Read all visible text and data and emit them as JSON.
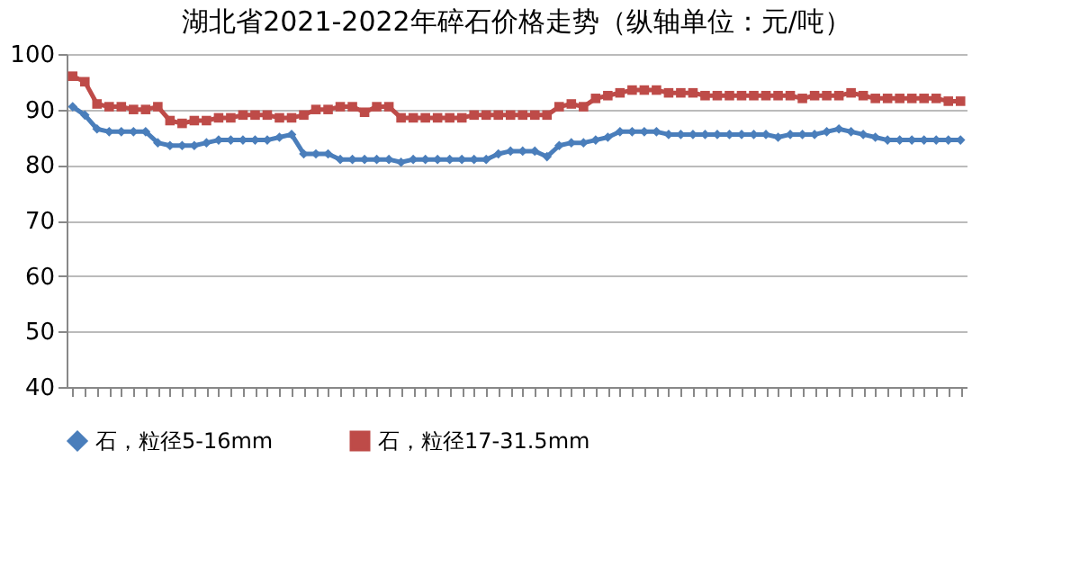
{
  "chart_data": {
    "type": "line",
    "title": "湖北省2021-2022年碎石价格走势（纵轴单位：元/吨）",
    "categories": [
      null,
      null,
      null,
      null,
      null,
      null,
      null,
      null,
      null,
      null,
      null,
      null,
      null,
      null,
      null,
      null,
      null,
      null,
      null,
      null,
      null,
      null,
      null,
      null,
      null,
      null,
      null,
      null,
      null,
      null,
      null,
      null,
      null,
      null,
      null,
      null,
      null,
      null,
      null,
      null,
      null,
      null,
      null,
      null,
      null,
      null,
      null,
      null,
      null,
      null,
      null,
      null,
      null,
      null,
      null,
      null,
      null,
      null,
      null,
      null,
      null,
      null,
      null,
      null,
      null,
      null,
      null,
      null,
      null,
      null,
      null,
      null,
      null,
      null
    ],
    "series": [
      {
        "name": "石，粒径5-16mm",
        "color": "#4a7ebb",
        "marker": "diamond",
        "values": [
          90.5,
          89,
          86.5,
          86,
          86,
          86,
          86,
          84,
          83.5,
          83.5,
          83.5,
          84,
          84.5,
          84.5,
          84.5,
          84.5,
          84.5,
          85,
          85.5,
          82,
          82,
          82,
          81,
          81,
          81,
          81,
          81,
          80.5,
          81,
          81,
          81,
          81,
          81,
          81,
          81,
          82,
          82.5,
          82.5,
          82.5,
          81.5,
          83.5,
          84,
          84,
          84.5,
          85,
          86,
          86,
          86,
          86,
          85.5,
          85.5,
          85.5,
          85.5,
          85.5,
          85.5,
          85.5,
          85.5,
          85.5,
          85,
          85.5,
          85.5,
          85.5,
          86,
          86.5,
          86,
          85.5,
          85,
          84.5,
          84.5,
          84.5,
          84.5,
          84.5,
          84.5,
          84.5
        ]
      },
      {
        "name": "石，粒径17-31.5mm",
        "color": "#be4b48",
        "marker": "square",
        "values": [
          96,
          95,
          91,
          90.5,
          90.5,
          90,
          90,
          90.5,
          88,
          87.5,
          88,
          88,
          88.5,
          88.5,
          89,
          89,
          89,
          88.5,
          88.5,
          89,
          90,
          90,
          90.5,
          90.5,
          89.5,
          90.5,
          90.5,
          88.5,
          88.5,
          88.5,
          88.5,
          88.5,
          88.5,
          89,
          89,
          89,
          89,
          89,
          89,
          89,
          90.5,
          91,
          90.5,
          92,
          92.5,
          93,
          93.5,
          93.5,
          93.5,
          93,
          93,
          93,
          92.5,
          92.5,
          92.5,
          92.5,
          92.5,
          92.5,
          92.5,
          92.5,
          92,
          92.5,
          92.5,
          92.5,
          93,
          92.5,
          92,
          92,
          92,
          92,
          92,
          92,
          91.5,
          91.5
        ]
      }
    ],
    "ylim": [
      40,
      100
    ],
    "yticks": [
      40,
      50,
      60,
      70,
      80,
      90,
      100
    ],
    "grid": "y",
    "legend": "bottom",
    "tick_labels": "y"
  }
}
